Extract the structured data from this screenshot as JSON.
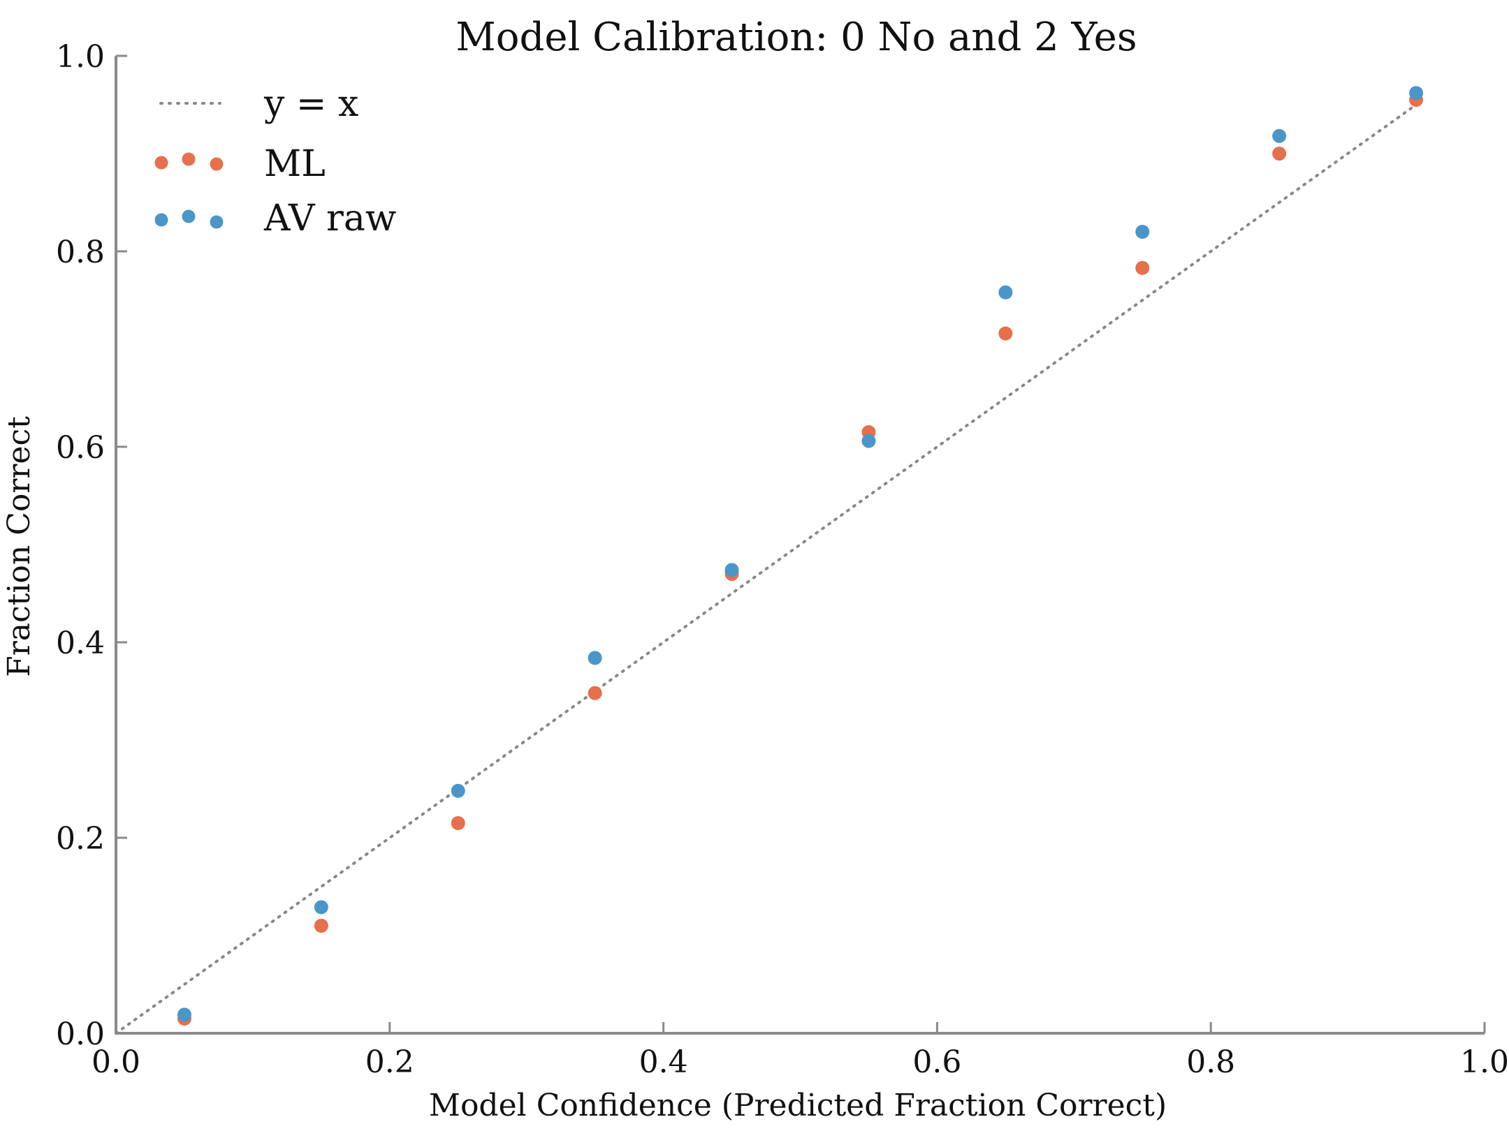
{
  "chart_data": {
    "type": "scatter",
    "title": "Model Calibration: 0 No and 2 Yes",
    "xlabel": "Model Confidence (Predicted Fraction Correct)",
    "ylabel": "Fraction Correct",
    "xlim": [
      0.0,
      1.0
    ],
    "ylim": [
      0.0,
      1.0
    ],
    "xticks": [
      0.0,
      0.2,
      0.4,
      0.6,
      0.8,
      1.0
    ],
    "yticks": [
      0.0,
      0.2,
      0.4,
      0.6,
      0.8,
      1.0
    ],
    "xtick_labels": [
      "0.0",
      "0.2",
      "0.4",
      "0.6",
      "0.8",
      "1.0"
    ],
    "ytick_labels": [
      "0.0",
      "0.2",
      "0.4",
      "0.6",
      "0.8",
      "1.0"
    ],
    "grid": false,
    "legend_position": "top-left",
    "reference_line": {
      "name": "y = x",
      "style": "dotted",
      "color": "#888888",
      "points": [
        [
          0.0,
          0.0
        ],
        [
          0.95,
          0.95
        ]
      ]
    },
    "x": [
      0.05,
      0.15,
      0.25,
      0.35,
      0.45,
      0.55,
      0.65,
      0.75,
      0.85,
      0.95
    ],
    "series": [
      {
        "name": "ML",
        "color": "#e5704b",
        "values": [
          0.015,
          0.11,
          0.215,
          0.348,
          0.47,
          0.615,
          0.716,
          0.783,
          0.9,
          0.955
        ]
      },
      {
        "name": "AV raw",
        "color": "#4a96c9",
        "values": [
          0.019,
          0.129,
          0.248,
          0.384,
          0.474,
          0.606,
          0.758,
          0.82,
          0.918,
          0.962
        ]
      }
    ]
  }
}
